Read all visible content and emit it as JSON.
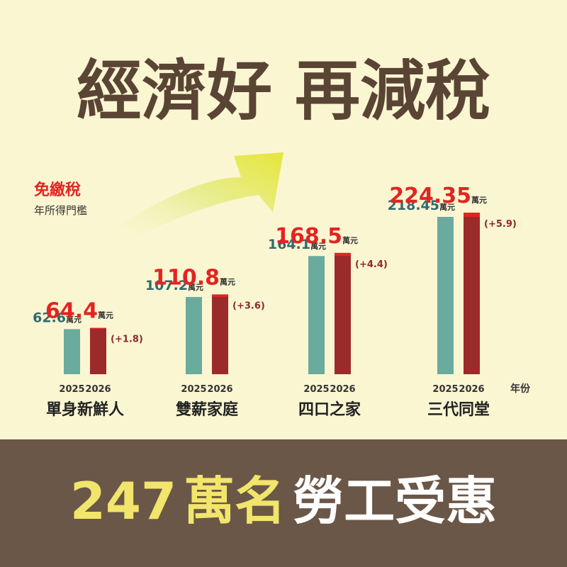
{
  "chart_data": {
    "type": "bar",
    "title": "經濟好 再減稅",
    "annotation": "免繳稅",
    "subtitle": "年所得門檻",
    "x_label": "年份",
    "unit": "萬元",
    "categories": [
      "單身新鮮人",
      "雙薪家庭",
      "四口之家",
      "三代同堂"
    ],
    "series": [
      {
        "name": "2025",
        "color": "#6aab9e",
        "values": [
          62.6,
          107.2,
          164.1,
          218.45
        ]
      },
      {
        "name": "2026",
        "color": "#9b2a2a",
        "values": [
          64.4,
          110.8,
          168.5,
          224.35
        ]
      }
    ],
    "increase": {
      "color": "#e12521",
      "values": [
        1.8,
        3.6,
        4.4,
        5.9
      ],
      "value_labels": [
        "(+1.8)",
        "(+3.6)",
        "(+4.4)",
        "(+5.9)"
      ]
    }
  },
  "footer": {
    "number": "247",
    "unit": "萬名",
    "text": "勞工受惠"
  }
}
